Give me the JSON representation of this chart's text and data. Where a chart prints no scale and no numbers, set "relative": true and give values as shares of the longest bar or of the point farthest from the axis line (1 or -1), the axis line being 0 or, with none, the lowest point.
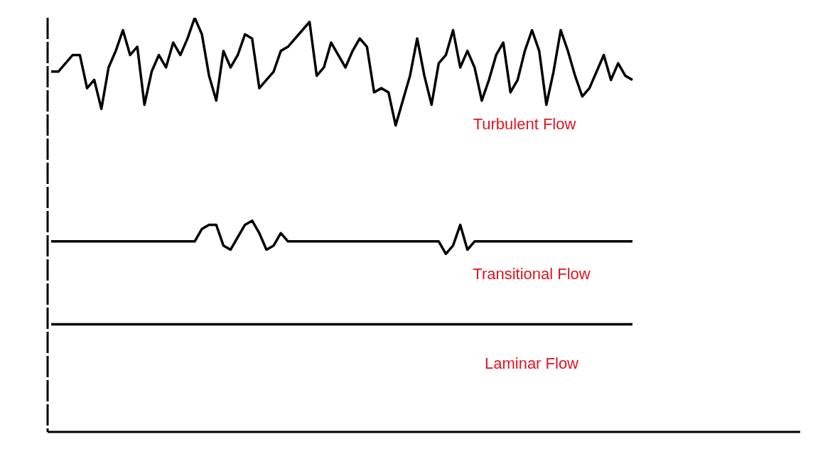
{
  "chart_data": {
    "type": "line",
    "relative": true,
    "legend": false,
    "grid": false,
    "marker": "none",
    "line_style": "solid",
    "categories": [
      null,
      null,
      null,
      null,
      null,
      null,
      null,
      null,
      null,
      null,
      null,
      null,
      null,
      null,
      null,
      null,
      null,
      null,
      null,
      null,
      null,
      null,
      null,
      null,
      null,
      null,
      null,
      null,
      null,
      null,
      null,
      null,
      null,
      null,
      null,
      null,
      null,
      null,
      null,
      null,
      null,
      null,
      null,
      null,
      null,
      null,
      null,
      null,
      null,
      null,
      null,
      null,
      null,
      null,
      null,
      null,
      null,
      null,
      null,
      null,
      null,
      null,
      null,
      null,
      null,
      null,
      null,
      null,
      null,
      null,
      null,
      null,
      null,
      null,
      null,
      null,
      null,
      null,
      null,
      null,
      null,
      null
    ],
    "series": [
      {
        "name": "Turbulent Flow",
        "color": "#000000",
        "values": [
          0.87,
          0.87,
          0.89,
          0.91,
          0.91,
          0.83,
          0.85,
          0.78,
          0.88,
          0.92,
          0.97,
          0.91,
          0.93,
          0.79,
          0.87,
          0.91,
          0.88,
          0.94,
          0.91,
          0.95,
          1,
          0.96,
          0.86,
          0.8,
          0.92,
          0.88,
          0.91,
          0.96,
          0.95,
          0.83,
          0.85,
          0.87,
          0.92,
          0.93,
          0.95,
          0.97,
          0.99,
          0.86,
          0.88,
          0.94,
          0.91,
          0.88,
          0.92,
          0.95,
          0.93,
          0.82,
          0.83,
          0.82,
          0.74,
          0.8,
          0.86,
          0.95,
          0.86,
          0.79,
          0.89,
          0.91,
          0.97,
          0.88,
          0.92,
          0.88,
          0.8,
          0.85,
          0.91,
          0.94,
          0.82,
          0.85,
          0.92,
          0.97,
          0.92,
          0.79,
          0.87,
          0.97,
          0.92,
          0.86,
          0.81,
          0.83,
          0.87,
          0.91,
          0.85,
          0.89,
          0.86,
          0.85
        ]
      },
      {
        "name": "Transitional Flow",
        "color": "#000000",
        "values": [
          0.46,
          0.46,
          0.46,
          0.46,
          0.46,
          0.46,
          0.46,
          0.46,
          0.46,
          0.46,
          0.46,
          0.46,
          0.46,
          0.46,
          0.46,
          0.46,
          0.46,
          0.46,
          0.46,
          0.46,
          0.46,
          0.49,
          0.5,
          0.5,
          0.45,
          0.44,
          0.47,
          0.5,
          0.51,
          0.48,
          0.44,
          0.45,
          0.48,
          0.46,
          0.46,
          0.46,
          0.46,
          0.46,
          0.46,
          0.46,
          0.46,
          0.46,
          0.46,
          0.46,
          0.46,
          0.46,
          0.46,
          0.46,
          0.46,
          0.46,
          0.46,
          0.46,
          0.46,
          0.46,
          0.46,
          0.43,
          0.45,
          0.5,
          0.44,
          0.46,
          0.46,
          0.46,
          0.46,
          0.46,
          0.46,
          0.46,
          0.46,
          0.46,
          0.46,
          0.46,
          0.46,
          0.46,
          0.46,
          0.46,
          0.46,
          0.46,
          0.46,
          0.46,
          0.46,
          0.46,
          0.46,
          0.46
        ]
      },
      {
        "name": "Laminar Flow",
        "color": "#000000",
        "values": [
          0.26,
          0.26,
          0.26,
          0.26,
          0.26,
          0.26,
          0.26,
          0.26,
          0.26,
          0.26,
          0.26,
          0.26,
          0.26,
          0.26,
          0.26,
          0.26,
          0.26,
          0.26,
          0.26,
          0.26,
          0.26,
          0.26,
          0.26,
          0.26,
          0.26,
          0.26,
          0.26,
          0.26,
          0.26,
          0.26,
          0.26,
          0.26,
          0.26,
          0.26,
          0.26,
          0.26,
          0.26,
          0.26,
          0.26,
          0.26,
          0.26,
          0.26,
          0.26,
          0.26,
          0.26,
          0.26,
          0.26,
          0.26,
          0.26,
          0.26,
          0.26,
          0.26,
          0.26,
          0.26,
          0.26,
          0.26,
          0.26,
          0.26,
          0.26,
          0.26,
          0.26,
          0.26,
          0.26,
          0.26,
          0.26,
          0.26,
          0.26,
          0.26,
          0.26,
          0.26,
          0.26,
          0.26,
          0.26,
          0.26,
          0.26,
          0.26,
          0.26,
          0.26,
          0.26,
          0.26,
          0.26,
          0.26
        ]
      }
    ]
  }
}
